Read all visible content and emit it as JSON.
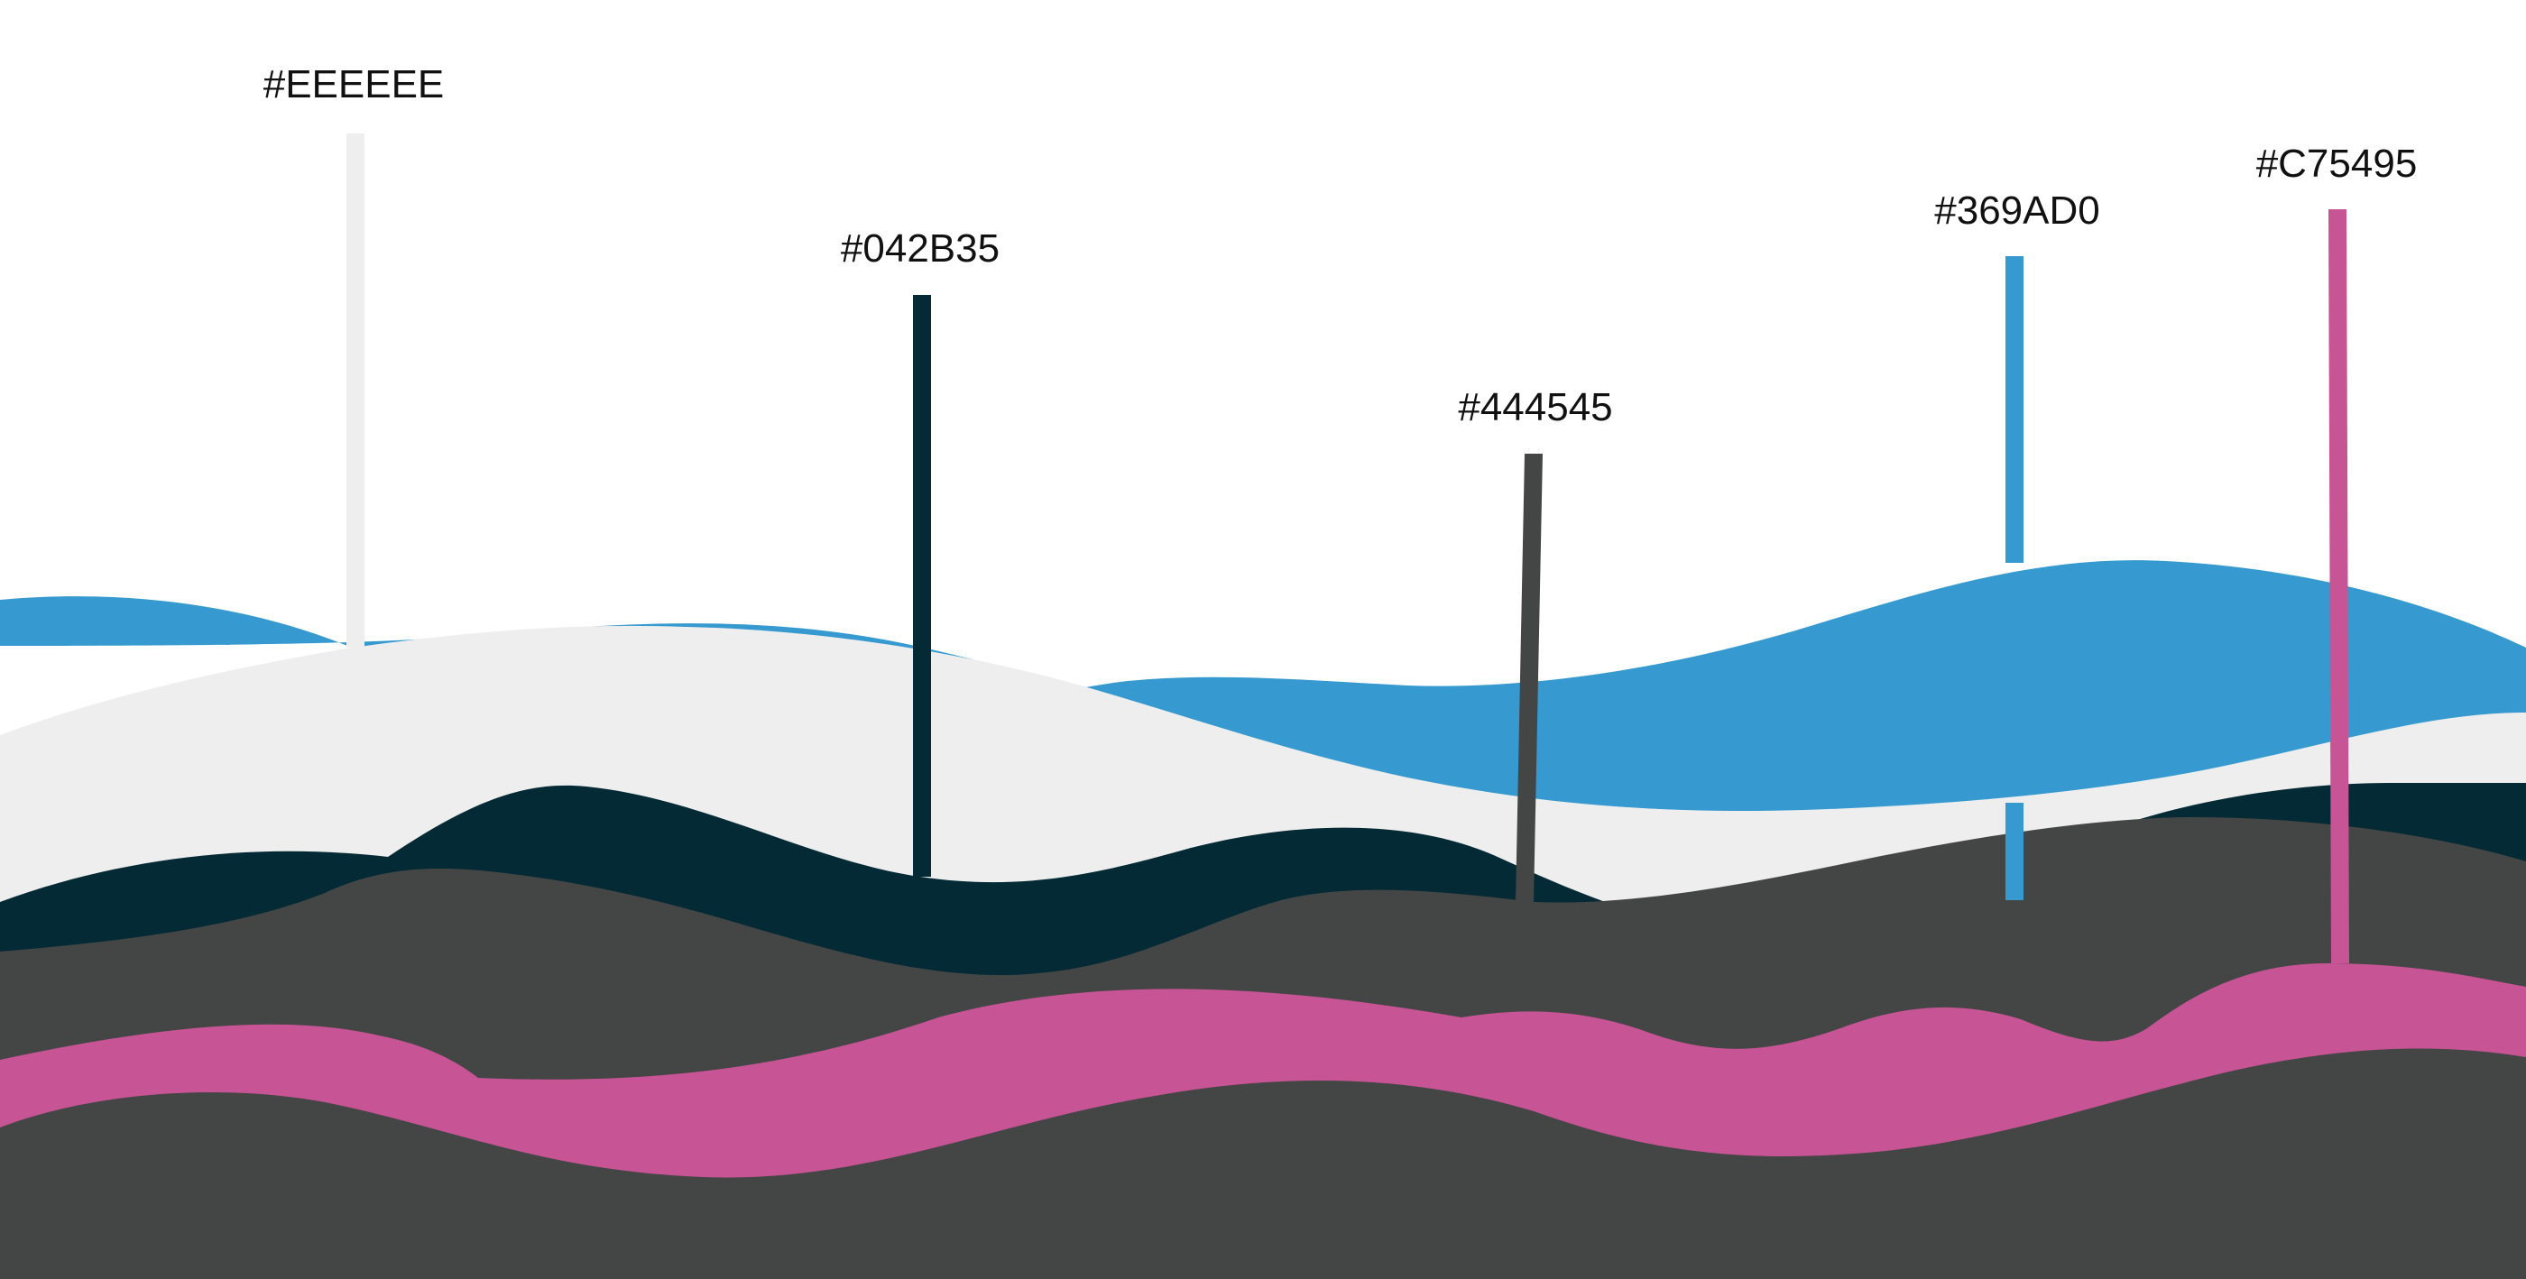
{
  "palette": {
    "swatches": [
      {
        "id": "eeeeee",
        "label": "#EEEEEE",
        "color": "#EEEEEE"
      },
      {
        "id": "042b35",
        "label": "#042B35",
        "color": "#042B35"
      },
      {
        "id": "444545",
        "label": "#444545",
        "color": "#444545"
      },
      {
        "id": "369ad0",
        "label": "#369AD0",
        "color": "#369AD0"
      },
      {
        "id": "c75495",
        "label": "#C75495",
        "color": "#C75495"
      }
    ]
  }
}
